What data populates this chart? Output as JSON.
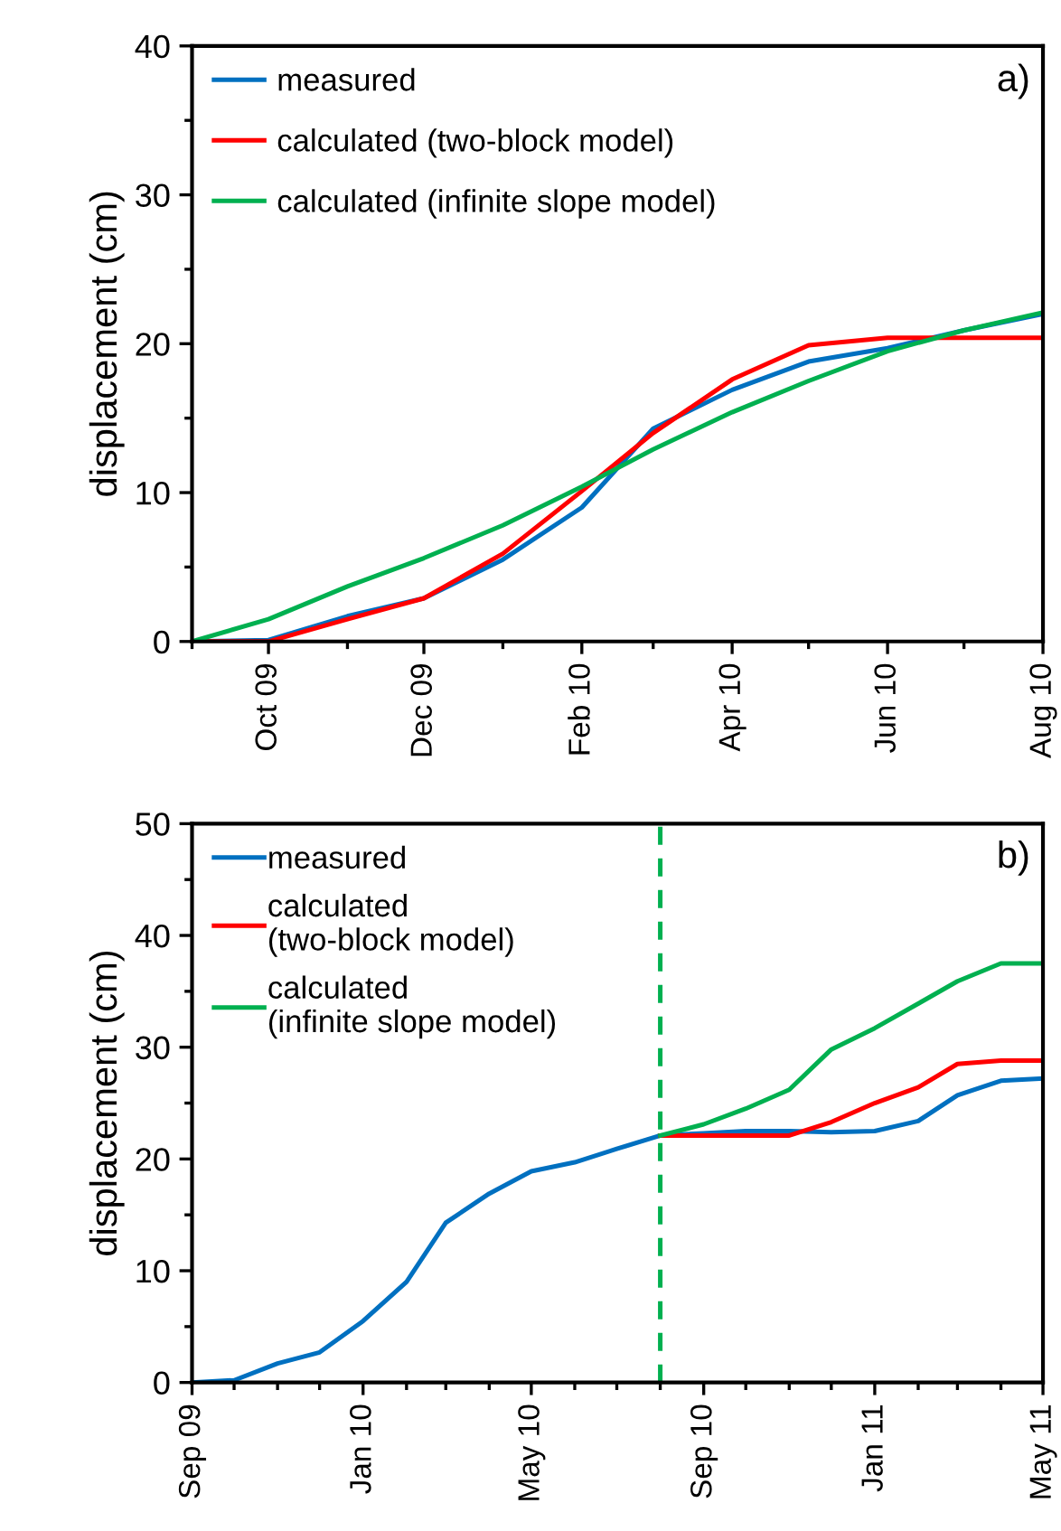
{
  "chart_data": [
    {
      "type": "line",
      "ylabel": "displacement (cm)",
      "annotations": [
        "a)"
      ],
      "legend": "top left",
      "grid": false,
      "marker": "none",
      "line_style": "solid",
      "x": [
        "2009-09-01",
        "2009-10-01",
        "2009-11-01",
        "2009-12-01",
        "2010-01-01",
        "2010-02-01",
        "2010-03-01",
        "2010-04-01",
        "2010-05-01",
        "2010-06-01",
        "2010-07-01",
        "2010-08-01"
      ],
      "xlim": [
        "2009-09-01",
        "2010-08-01"
      ],
      "xticks": [
        {
          "value": "2009-10-01",
          "label": "Oct 09"
        },
        {
          "value": "2009-12-01",
          "label": "Dec 09"
        },
        {
          "value": "2010-02-01",
          "label": "Feb 10"
        },
        {
          "value": "2010-04-01",
          "label": "Apr 10"
        },
        {
          "value": "2010-06-01",
          "label": "Jun 10"
        },
        {
          "value": "2010-08-01",
          "label": "Aug 10"
        }
      ],
      "ylim": [
        0,
        40
      ],
      "yticks": [
        0,
        10,
        20,
        30,
        40
      ],
      "series": [
        {
          "name": "measured",
          "color": "#0070c0",
          "values": [
            0,
            0.1,
            1.7,
            2.9,
            5.5,
            9.0,
            14.3,
            16.9,
            18.8,
            19.7,
            20.9,
            22.0
          ]
        },
        {
          "name": "calculated (two-block model)",
          "color": "#ff0000",
          "values": [
            0,
            0,
            1.5,
            2.9,
            5.9,
            10.1,
            14.0,
            17.6,
            19.9,
            20.4,
            20.4,
            20.4
          ]
        },
        {
          "name": "calculated (infinite slope model)",
          "color": "#00b050",
          "values": [
            0,
            1.5,
            3.7,
            5.6,
            7.8,
            10.4,
            12.9,
            15.4,
            17.5,
            19.5,
            20.9,
            22.1
          ]
        }
      ]
    },
    {
      "type": "line",
      "ylabel": "displacement (cm)",
      "annotations": [
        "b)"
      ],
      "legend": "top left",
      "grid": false,
      "marker": "none",
      "line_style": "solid",
      "x": [
        "2009-09-01",
        "2009-10-01",
        "2009-11-01",
        "2009-12-01",
        "2010-01-01",
        "2010-02-01",
        "2010-03-01",
        "2010-04-01",
        "2010-05-01",
        "2010-06-01",
        "2010-07-01",
        "2010-08-01",
        "2010-09-01",
        "2010-10-01",
        "2010-11-01",
        "2010-12-01",
        "2011-01-01",
        "2011-02-01",
        "2011-03-01",
        "2011-04-01",
        "2011-05-01"
      ],
      "xlim": [
        "2009-09-01",
        "2011-05-01"
      ],
      "xticks": [
        {
          "value": "2009-09-01",
          "label": "Sep 09"
        },
        {
          "value": "2010-01-01",
          "label": "Jan 10"
        },
        {
          "value": "2010-05-01",
          "label": "May 10"
        },
        {
          "value": "2010-09-01",
          "label": "Sep 10"
        },
        {
          "value": "2011-01-01",
          "label": "Jan 11"
        },
        {
          "value": "2011-05-01",
          "label": "May 11"
        }
      ],
      "ylim": [
        0,
        50
      ],
      "yticks": [
        0,
        10,
        20,
        30,
        40,
        50
      ],
      "ref_lines": [
        {
          "axis": "x",
          "value": "2010-08-01",
          "label": null,
          "color": "#00b050",
          "line_style": "dashed"
        }
      ],
      "series": [
        {
          "name": "measured",
          "color": "#0070c0",
          "values": [
            0,
            0.2,
            1.7,
            2.7,
            5.5,
            9.0,
            14.3,
            16.9,
            18.9,
            19.7,
            20.9,
            22.1,
            22.3,
            22.5,
            22.5,
            22.4,
            22.5,
            23.4,
            25.7,
            27.0,
            27.2
          ]
        },
        {
          "name": "calculated\n(two-block model)",
          "color": "#ff0000",
          "x": [
            "2010-08-01",
            "2010-09-01",
            "2010-10-01",
            "2010-11-01",
            "2010-12-01",
            "2011-01-01",
            "2011-02-01",
            "2011-03-01",
            "2011-04-01",
            "2011-05-01"
          ],
          "values": [
            22.1,
            22.1,
            22.1,
            22.1,
            23.3,
            25.0,
            26.4,
            28.5,
            28.8,
            28.8
          ]
        },
        {
          "name": "calculated\n(infinite slope model)",
          "color": "#00b050",
          "x": [
            "2010-08-01",
            "2010-09-01",
            "2010-10-01",
            "2010-11-01",
            "2010-12-01",
            "2011-01-01",
            "2011-02-01",
            "2011-03-01",
            "2011-04-01",
            "2011-05-01"
          ],
          "values": [
            22.1,
            23.1,
            24.5,
            26.2,
            29.8,
            31.7,
            33.9,
            35.9,
            37.5,
            37.5
          ]
        }
      ]
    }
  ]
}
